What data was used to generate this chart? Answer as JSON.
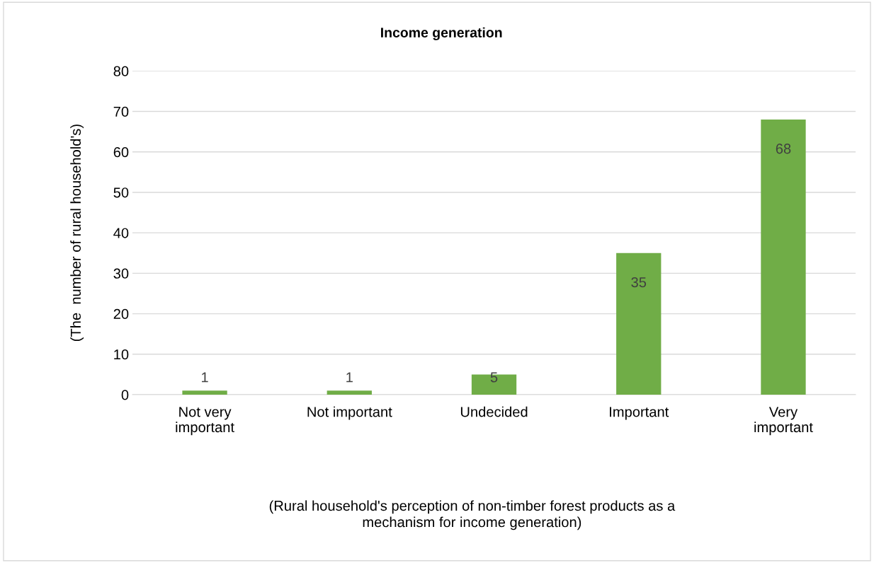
{
  "chart_data": {
    "type": "bar",
    "title": "Income generation",
    "xlabel": "(Rural household's perception of non-timber forest products as a\nmechanism for income generation)",
    "ylabel": "(The  number of rural household's)",
    "categories": [
      "Not very\nimportant",
      "Not important",
      "Undecided",
      "Important",
      "Very\nimportant"
    ],
    "values": [
      1,
      1,
      5,
      35,
      68
    ],
    "color": "#70ad47",
    "ylim": [
      0,
      80
    ],
    "yticks": [
      0,
      10,
      20,
      30,
      40,
      50,
      60,
      70,
      80
    ],
    "grid": "y",
    "data_labels": true
  }
}
